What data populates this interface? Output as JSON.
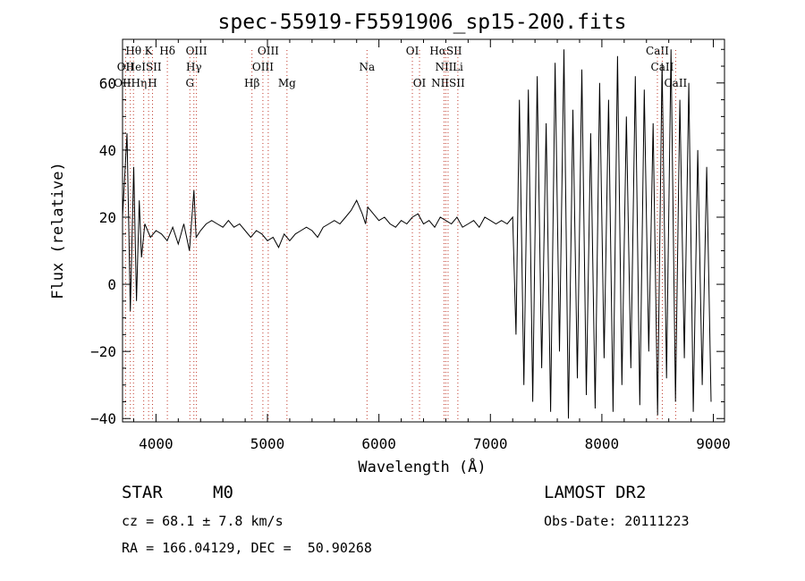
{
  "chart_data": {
    "type": "line",
    "title": "spec-55919-F5591906_sp15-200.fits",
    "xlabel": "Wavelength (Å)",
    "ylabel": "Flux (relative)",
    "xlim": [
      3700,
      9100
    ],
    "ylim": [
      -41,
      73
    ],
    "xticks": [
      4000,
      5000,
      6000,
      7000,
      8000,
      9000
    ],
    "yticks": [
      -40,
      -20,
      0,
      20,
      40,
      60
    ],
    "tick_labels_x": [
      "4000",
      "5000",
      "6000",
      "7000",
      "8000",
      "9000"
    ],
    "tick_labels_y": [
      "−40",
      "−20",
      "0",
      "20",
      "40",
      "60"
    ],
    "grid": false,
    "series": [
      {
        "x": [
          3700,
          3740,
          3770,
          3800,
          3825,
          3850,
          3870,
          3900,
          3950,
          4000,
          4050,
          4100,
          4150,
          4200,
          4250,
          4300,
          4340,
          4360,
          4400,
          4450,
          4500,
          4550,
          4600,
          4650,
          4700,
          4750,
          4800,
          4850,
          4900,
          4950,
          5000,
          5050,
          5100,
          5150,
          5200,
          5250,
          5300,
          5350,
          5400,
          5450,
          5500,
          5550,
          5600,
          5650,
          5700,
          5750,
          5800,
          5850,
          5880,
          5900,
          5950,
          6000,
          6050,
          6100,
          6150,
          6200,
          6250,
          6300,
          6350,
          6400,
          6450,
          6500,
          6550,
          6600,
          6650,
          6700,
          6750,
          6800,
          6850,
          6900,
          6950,
          7000,
          7050,
          7100,
          7150,
          7200,
          7230,
          7260,
          7300,
          7340,
          7380,
          7420,
          7460,
          7500,
          7540,
          7580,
          7620,
          7660,
          7700,
          7740,
          7780,
          7820,
          7860,
          7900,
          7940,
          7980,
          8020,
          8060,
          8100,
          8140,
          8180,
          8220,
          8260,
          8300,
          8340,
          8380,
          8420,
          8460,
          8500,
          8540,
          8580,
          8620,
          8660,
          8700,
          8740,
          8780,
          8820,
          8860,
          8900,
          8940,
          8980
        ],
        "y": [
          20,
          45,
          -8,
          35,
          -5,
          25,
          8,
          18,
          14,
          16,
          15,
          13,
          17,
          12,
          18,
          10,
          28,
          14,
          16,
          18,
          19,
          18,
          17,
          19,
          17,
          18,
          16,
          14,
          16,
          15,
          13,
          14,
          11,
          15,
          13,
          15,
          16,
          17,
          16,
          14,
          17,
          18,
          19,
          18,
          20,
          22,
          25,
          21,
          18,
          23,
          21,
          19,
          20,
          18,
          17,
          19,
          18,
          20,
          21,
          18,
          19,
          17,
          20,
          19,
          18,
          20,
          17,
          18,
          19,
          17,
          20,
          19,
          18,
          19,
          18,
          20,
          -15,
          55,
          -30,
          58,
          -35,
          62,
          -25,
          48,
          -38,
          66,
          -20,
          70,
          -40,
          52,
          -28,
          64,
          -33,
          45,
          -37,
          60,
          -22,
          55,
          -38,
          68,
          -30,
          50,
          -25,
          62,
          -36,
          58,
          -20,
          48,
          -39,
          66,
          -28,
          70,
          -35,
          55,
          -22,
          60,
          -38,
          40,
          -30,
          35,
          -35
        ]
      }
    ],
    "spectral_lines": [
      {
        "label": "Hθ",
        "x": 3798,
        "row": 0
      },
      {
        "label": "K",
        "x": 3934,
        "row": 0
      },
      {
        "label": "Hδ",
        "x": 4102,
        "row": 0
      },
      {
        "label": "OIII",
        "x": 4363,
        "row": 0
      },
      {
        "label": "OIII",
        "x": 5007,
        "row": 0
      },
      {
        "label": "OI",
        "x": 6300,
        "row": 0
      },
      {
        "label": "HαSII",
        "x": 6600,
        "row": 0
      },
      {
        "label": "CaII",
        "x": 8498,
        "row": 0
      },
      {
        "label": "OII",
        "x": 3727,
        "row": 1
      },
      {
        "label": "HeISII",
        "x": 3890,
        "row": 1
      },
      {
        "label": "Hγ",
        "x": 4340,
        "row": 1
      },
      {
        "label": "OIII",
        "x": 4959,
        "row": 1
      },
      {
        "label": "Na",
        "x": 5893,
        "row": 1
      },
      {
        "label": "NII",
        "x": 6584,
        "row": 1
      },
      {
        "label": "Li",
        "x": 6708,
        "row": 1
      },
      {
        "label": "CaII",
        "x": 8542,
        "row": 1
      },
      {
        "label": "OIIHη",
        "x": 3770,
        "row": 2
      },
      {
        "label": "H",
        "x": 3969,
        "row": 2
      },
      {
        "label": "G",
        "x": 4304,
        "row": 2
      },
      {
        "label": "Hβ",
        "x": 4861,
        "row": 2
      },
      {
        "label": "Mg",
        "x": 5175,
        "row": 2
      },
      {
        "label": "OI",
        "x": 6364,
        "row": 2
      },
      {
        "label": "NIISII",
        "x": 6620,
        "row": 2
      },
      {
        "label": "CaII",
        "x": 8662,
        "row": 2
      }
    ]
  },
  "info": {
    "class_label": "STAR",
    "subclass_label": "M0",
    "survey_label": "LAMOST DR2",
    "cz_text": "cz = 68.1 ± 7.8 km/s",
    "obs_date_text": "Obs-Date: 20111223",
    "coords_text": "RA = 166.04129, DEC =  50.90268"
  }
}
